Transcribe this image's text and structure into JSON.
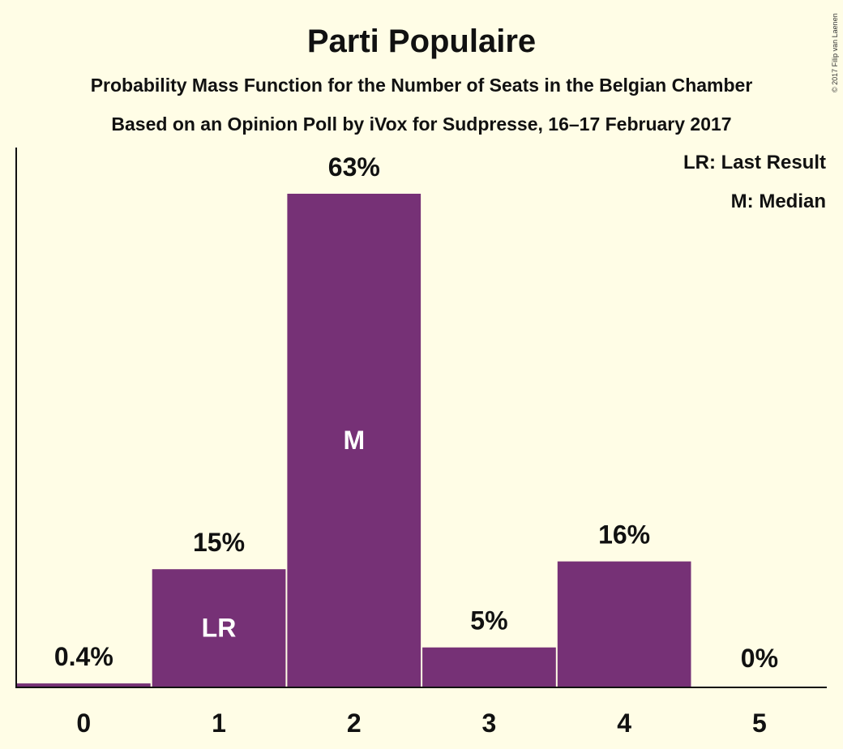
{
  "chart_data": {
    "type": "bar",
    "title": "Parti Populaire",
    "subtitle": "Probability Mass Function for the Number of Seats in the Belgian Chamber",
    "subtitle2": "Based on an Opinion Poll by iVox for Sudpresse, 16–17 February 2017",
    "categories": [
      "0",
      "1",
      "2",
      "3",
      "4",
      "5"
    ],
    "values": [
      0.4,
      15,
      63,
      5,
      16,
      0
    ],
    "value_labels": [
      "0.4%",
      "15%",
      "63%",
      "5%",
      "16%",
      "0%"
    ],
    "bar_annotations": [
      "",
      "LR",
      "M",
      "",
      "",
      ""
    ],
    "legend": [
      "LR: Last Result",
      "M: Median"
    ],
    "legend_placement": "top-right",
    "ylim": [
      0,
      66
    ],
    "grid": false,
    "bar_color": "#763176",
    "copyright": "© 2017 Filip van Laenen"
  }
}
